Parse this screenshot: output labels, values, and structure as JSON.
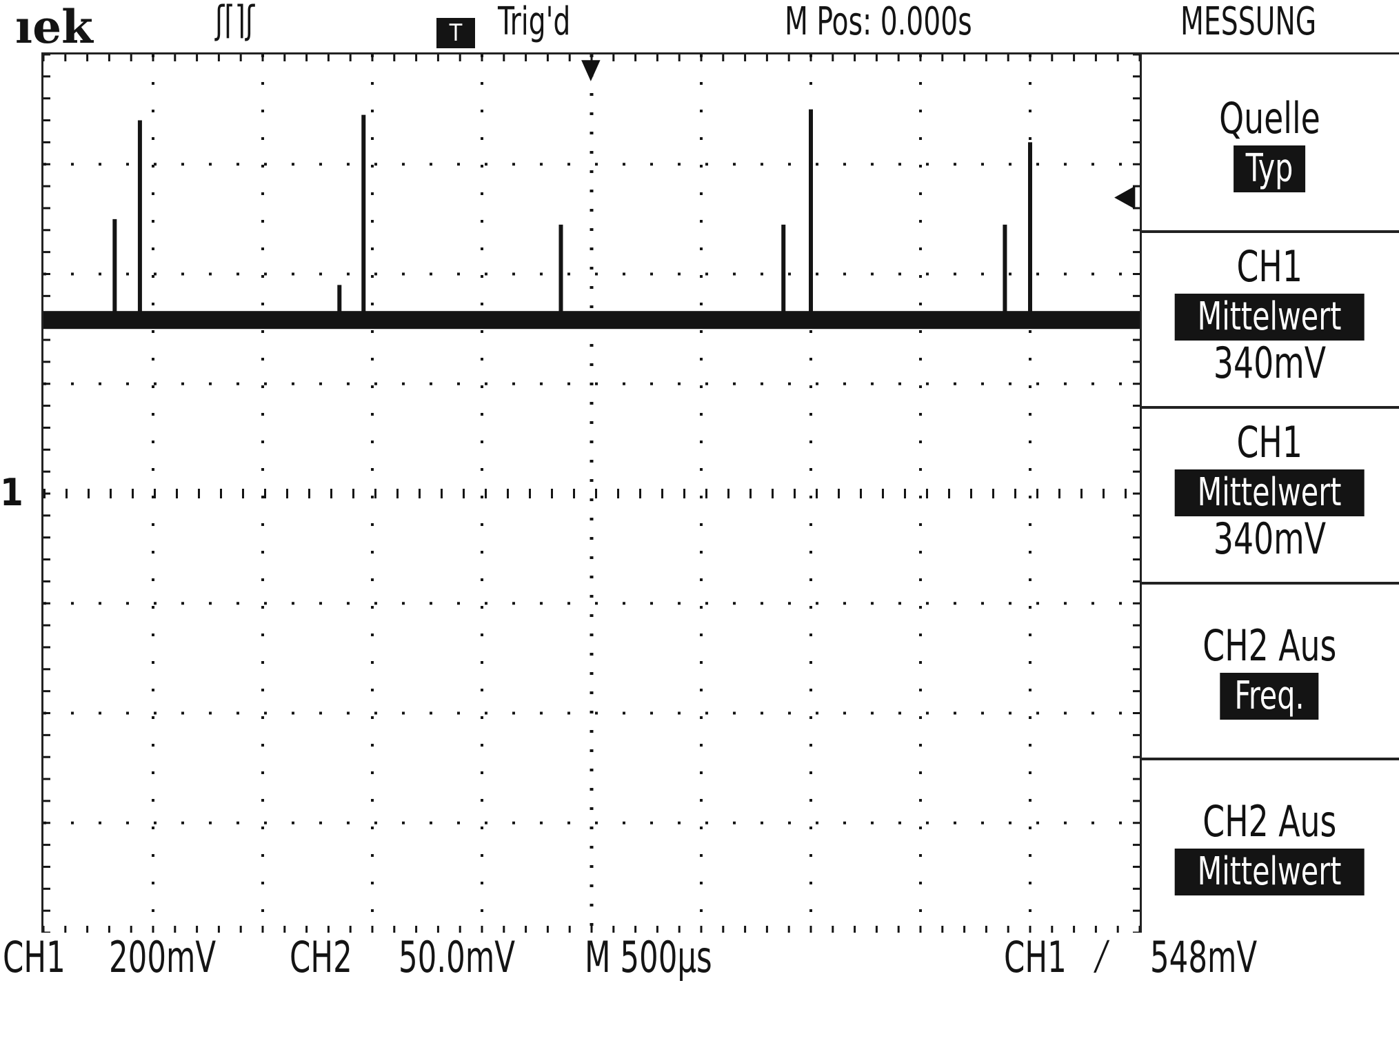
{
  "header": {
    "brand": "ıek",
    "acq_icon": "ʃ⌈⌉ʃ",
    "trig_box": "T",
    "trig_status": "Trig'd",
    "mpos": "M Pos: 0.000s",
    "menu_title": "MESSUNG"
  },
  "menu": {
    "items": [
      {
        "label": "Quelle",
        "value": "Typ",
        "reading": ""
      },
      {
        "label": "CH1",
        "value": "Mittelwert",
        "reading": "340mV"
      },
      {
        "label": "CH1",
        "value": "Mittelwert",
        "reading": "340mV"
      },
      {
        "label": "CH2 Aus",
        "value": "Freq.",
        "reading": ""
      },
      {
        "label": "CH2 Aus",
        "value": "Mittelwert",
        "reading": ""
      }
    ]
  },
  "footer": {
    "ch1_label": "CH1",
    "ch1_scale": "200mV",
    "ch2_label": "CH2",
    "ch2_scale": "50.0mV",
    "timebase": "M 500µs",
    "trigger_src": "CH1",
    "trigger_slope": "⁄",
    "trigger_level": "548mV"
  },
  "markers": {
    "ch1_ground": "1",
    "trigger_pos": "▼",
    "trigger_level_arrow": "◀"
  },
  "colors": {
    "background": "#ffffff",
    "ink": "#141414"
  },
  "chart_data": {
    "type": "line",
    "xlabel": "",
    "ylabel": "",
    "x_divisions": 10,
    "y_divisions": 8,
    "grid": true,
    "series": [
      {
        "baseline_div_above_ground": 1.6,
        "spikes": [
          {
            "t_div": 0.65,
            "height_div": 0.9
          },
          {
            "t_div": 0.88,
            "height_div": 1.8
          },
          {
            "t_div": 2.7,
            "height_div": 0.3
          },
          {
            "t_div": 2.92,
            "height_div": 1.85
          },
          {
            "t_div": 4.72,
            "height_div": 0.85
          },
          {
            "t_div": 6.75,
            "height_div": 0.85
          },
          {
            "t_div": 7.0,
            "height_div": 1.9
          },
          {
            "t_div": 8.77,
            "height_div": 0.85
          },
          {
            "t_div": 9.0,
            "height_div": 1.6
          }
        ]
      }
    ]
  }
}
